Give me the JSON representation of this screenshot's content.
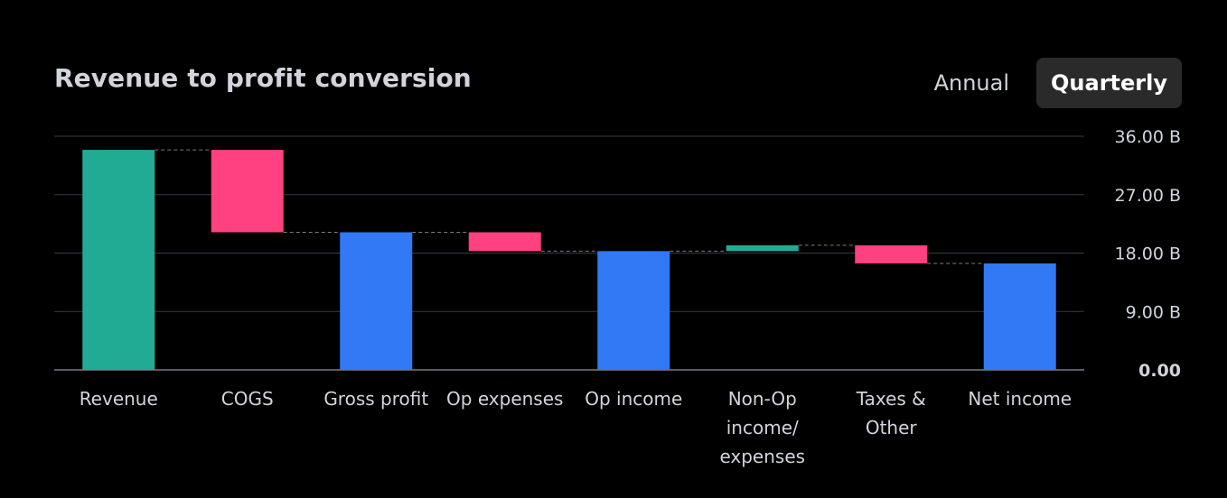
{
  "header": {
    "title": "Revenue to profit conversion"
  },
  "period_toggle": {
    "options": [
      "Annual",
      "Quarterly"
    ],
    "selected": "Quarterly"
  },
  "colors": {
    "increase": "#22ab94",
    "decrease": "#ff4081",
    "total": "#3179f5",
    "grid": "#363a45",
    "baseline": "#787b86",
    "connector": "#787b86"
  },
  "chart_data": {
    "type": "waterfall",
    "title": "Revenue to profit conversion",
    "unit": "B",
    "ylim": [
      0,
      36
    ],
    "yticks": [
      {
        "value": 0,
        "label": "0.00"
      },
      {
        "value": 9,
        "label": "9.00 B"
      },
      {
        "value": 18,
        "label": "18.00 B"
      },
      {
        "value": 27,
        "label": "27.00 B"
      },
      {
        "value": 36,
        "label": "36.00 B"
      }
    ],
    "bars": [
      {
        "category": "Revenue",
        "label_lines": [
          "Revenue"
        ],
        "kind": "total",
        "start": 0,
        "end": 33.9
      },
      {
        "category": "COGS",
        "label_lines": [
          "COGS"
        ],
        "kind": "decrease",
        "start": 33.9,
        "end": 21.2
      },
      {
        "category": "Gross profit",
        "label_lines": [
          "Gross profit"
        ],
        "kind": "subtotal",
        "start": 0,
        "end": 21.2
      },
      {
        "category": "Op expenses",
        "label_lines": [
          "Op expenses"
        ],
        "kind": "decrease",
        "start": 21.2,
        "end": 18.3
      },
      {
        "category": "Op income",
        "label_lines": [
          "Op income"
        ],
        "kind": "subtotal",
        "start": 0,
        "end": 18.3
      },
      {
        "category": "Non-Op income/ expenses",
        "label_lines": [
          "Non-Op",
          "income/",
          "expenses"
        ],
        "kind": "increase",
        "start": 18.3,
        "end": 19.2
      },
      {
        "category": "Taxes & Other",
        "label_lines": [
          "Taxes &",
          "Other"
        ],
        "kind": "decrease",
        "start": 19.2,
        "end": 16.4
      },
      {
        "category": "Net income",
        "label_lines": [
          "Net income"
        ],
        "kind": "subtotal",
        "start": 0,
        "end": 16.4
      }
    ]
  }
}
